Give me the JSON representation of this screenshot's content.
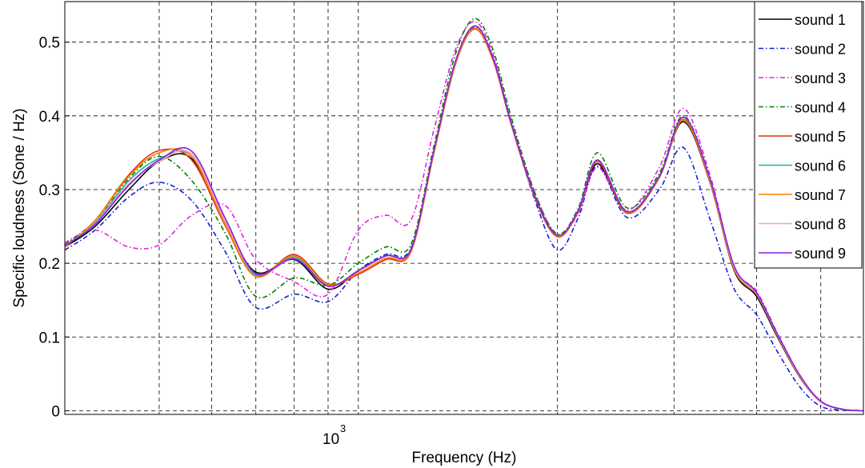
{
  "chart_data": {
    "type": "line",
    "xlabel": "Frequency (Hz)",
    "ylabel": "Specific loudness (Sone / Hz)",
    "x_scale": "log",
    "xlim": [
      360,
      5800
    ],
    "ylim": [
      -0.005,
      0.555
    ],
    "yticks": [
      0,
      0.1,
      0.2,
      0.3,
      0.4,
      0.5
    ],
    "ytick_labels": [
      "0",
      "0.1",
      "0.2",
      "0.3",
      "0.4",
      "0.5"
    ],
    "xtick_label": {
      "base": "10",
      "exponent": "3",
      "value": 1000
    },
    "x_gridlines": [
      500,
      600,
      700,
      800,
      900,
      1000,
      2000,
      3000,
      4000,
      5000
    ],
    "grid": true,
    "legend_position": "top-right",
    "series": [
      {
        "name": "sound 1",
        "color": "#000000",
        "dash": "solid",
        "x": [
          360,
          400,
          450,
          500,
          560,
          630,
          700,
          800,
          900,
          1000,
          1100,
          1200,
          1300,
          1400,
          1500,
          1600,
          1700,
          1850,
          2000,
          2150,
          2300,
          2550,
          2850,
          3100,
          3400,
          3700,
          4000,
          4300,
          4650,
          5000,
          5400,
          5800
        ],
        "y": [
          0.222,
          0.25,
          0.3,
          0.338,
          0.342,
          0.255,
          0.188,
          0.205,
          0.165,
          0.19,
          0.21,
          0.218,
          0.35,
          0.47,
          0.518,
          0.475,
          0.39,
          0.29,
          0.238,
          0.27,
          0.335,
          0.268,
          0.318,
          0.392,
          0.31,
          0.19,
          0.155,
          0.1,
          0.045,
          0.012,
          0.002,
          0.0
        ]
      },
      {
        "name": "sound 2",
        "color": "#1020d0",
        "dash": "dashdot",
        "x": [
          360,
          400,
          450,
          500,
          560,
          630,
          700,
          800,
          900,
          1000,
          1100,
          1200,
          1300,
          1400,
          1500,
          1600,
          1700,
          1850,
          2000,
          2150,
          2300,
          2550,
          2850,
          3100,
          3400,
          3700,
          4000,
          4300,
          4650,
          5000,
          5400,
          5800
        ],
        "y": [
          0.218,
          0.245,
          0.29,
          0.31,
          0.285,
          0.215,
          0.14,
          0.158,
          0.148,
          0.19,
          0.212,
          0.22,
          0.35,
          0.47,
          0.52,
          0.478,
          0.392,
          0.285,
          0.218,
          0.262,
          0.332,
          0.262,
          0.3,
          0.357,
          0.26,
          0.165,
          0.13,
          0.08,
          0.032,
          0.006,
          0.001,
          0.0
        ]
      },
      {
        "name": "sound 3",
        "color": "#e020e0",
        "dash": "dashdot",
        "x": [
          360,
          400,
          450,
          500,
          560,
          630,
          700,
          800,
          900,
          1000,
          1100,
          1200,
          1300,
          1400,
          1500,
          1600,
          1700,
          1850,
          2000,
          2150,
          2300,
          2550,
          2850,
          3100,
          3400,
          3700,
          4000,
          4300,
          4650,
          5000,
          5400,
          5800
        ],
        "y": [
          0.228,
          0.245,
          0.222,
          0.225,
          0.265,
          0.278,
          0.205,
          0.175,
          0.158,
          0.245,
          0.265,
          0.258,
          0.38,
          0.488,
          0.528,
          0.482,
          0.395,
          0.295,
          0.238,
          0.268,
          0.33,
          0.272,
          0.33,
          0.41,
          0.32,
          0.195,
          0.162,
          0.105,
          0.048,
          0.013,
          0.002,
          0.0
        ]
      },
      {
        "name": "sound 4",
        "color": "#008000",
        "dash": "dashdot",
        "x": [
          360,
          400,
          450,
          500,
          560,
          630,
          700,
          800,
          900,
          1000,
          1100,
          1200,
          1300,
          1400,
          1500,
          1600,
          1700,
          1850,
          2000,
          2150,
          2300,
          2550,
          2850,
          3100,
          3400,
          3700,
          4000,
          4300,
          4650,
          5000,
          5400,
          5800
        ],
        "y": [
          0.225,
          0.258,
          0.315,
          0.345,
          0.312,
          0.24,
          0.155,
          0.18,
          0.17,
          0.2,
          0.222,
          0.225,
          0.358,
          0.482,
          0.532,
          0.488,
          0.4,
          0.295,
          0.24,
          0.275,
          0.35,
          0.275,
          0.322,
          0.4,
          0.315,
          0.192,
          0.16,
          0.102,
          0.046,
          0.012,
          0.002,
          0.0
        ]
      },
      {
        "name": "sound 5",
        "color": "#e03010",
        "dash": "solid",
        "x": [
          360,
          400,
          450,
          500,
          560,
          630,
          700,
          800,
          900,
          1000,
          1100,
          1200,
          1300,
          1400,
          1500,
          1600,
          1700,
          1850,
          2000,
          2150,
          2300,
          2550,
          2850,
          3100,
          3400,
          3700,
          4000,
          4300,
          4650,
          5000,
          5400,
          5800
        ],
        "y": [
          0.222,
          0.258,
          0.32,
          0.353,
          0.34,
          0.25,
          0.182,
          0.212,
          0.172,
          0.185,
          0.205,
          0.215,
          0.348,
          0.468,
          0.518,
          0.474,
          0.39,
          0.288,
          0.236,
          0.27,
          0.338,
          0.268,
          0.316,
          0.395,
          0.312,
          0.192,
          0.158,
          0.102,
          0.046,
          0.012,
          0.002,
          0.0
        ]
      },
      {
        "name": "sound 6",
        "color": "#20b0b0",
        "dash": "solid",
        "x": [
          360,
          400,
          450,
          500,
          560,
          630,
          700,
          800,
          900,
          1000,
          1100,
          1200,
          1300,
          1400,
          1500,
          1600,
          1700,
          1850,
          2000,
          2150,
          2300,
          2550,
          2850,
          3100,
          3400,
          3700,
          4000,
          4300,
          4650,
          5000,
          5400,
          5800
        ],
        "y": [
          0.223,
          0.255,
          0.312,
          0.342,
          0.345,
          0.252,
          0.184,
          0.208,
          0.17,
          0.19,
          0.21,
          0.218,
          0.352,
          0.472,
          0.522,
          0.477,
          0.392,
          0.29,
          0.238,
          0.272,
          0.34,
          0.27,
          0.318,
          0.398,
          0.313,
          0.193,
          0.158,
          0.102,
          0.046,
          0.012,
          0.002,
          0.0
        ]
      },
      {
        "name": "sound 7",
        "color": "#ff8000",
        "dash": "solid",
        "x": [
          360,
          400,
          450,
          500,
          560,
          630,
          700,
          800,
          900,
          1000,
          1100,
          1200,
          1300,
          1400,
          1500,
          1600,
          1700,
          1850,
          2000,
          2150,
          2300,
          2550,
          2850,
          3100,
          3400,
          3700,
          4000,
          4300,
          4650,
          5000,
          5400,
          5800
        ],
        "y": [
          0.222,
          0.258,
          0.318,
          0.35,
          0.345,
          0.252,
          0.182,
          0.21,
          0.171,
          0.187,
          0.207,
          0.216,
          0.349,
          0.469,
          0.519,
          0.475,
          0.39,
          0.289,
          0.237,
          0.271,
          0.339,
          0.269,
          0.317,
          0.394,
          0.311,
          0.192,
          0.158,
          0.102,
          0.046,
          0.012,
          0.002,
          0.0
        ]
      },
      {
        "name": "sound 8",
        "color": "#ffa0b0",
        "dash": "solid",
        "x": [
          360,
          400,
          450,
          500,
          560,
          630,
          700,
          800,
          900,
          1000,
          1100,
          1200,
          1300,
          1400,
          1500,
          1600,
          1700,
          1850,
          2000,
          2150,
          2300,
          2550,
          2850,
          3100,
          3400,
          3700,
          4000,
          4300,
          4650,
          5000,
          5400,
          5800
        ],
        "y": [
          0.224,
          0.254,
          0.308,
          0.338,
          0.348,
          0.256,
          0.186,
          0.206,
          0.169,
          0.19,
          0.21,
          0.218,
          0.352,
          0.472,
          0.522,
          0.477,
          0.392,
          0.29,
          0.238,
          0.272,
          0.34,
          0.27,
          0.318,
          0.398,
          0.314,
          0.194,
          0.159,
          0.103,
          0.047,
          0.012,
          0.002,
          0.0
        ]
      },
      {
        "name": "sound 9",
        "color": "#8020e0",
        "dash": "solid",
        "x": [
          360,
          400,
          450,
          500,
          560,
          630,
          700,
          800,
          900,
          1000,
          1100,
          1200,
          1300,
          1400,
          1500,
          1600,
          1700,
          1850,
          2000,
          2150,
          2300,
          2550,
          2850,
          3100,
          3400,
          3700,
          4000,
          4300,
          4650,
          5000,
          5400,
          5800
        ],
        "y": [
          0.224,
          0.253,
          0.306,
          0.34,
          0.352,
          0.26,
          0.186,
          0.206,
          0.169,
          0.19,
          0.21,
          0.218,
          0.352,
          0.472,
          0.522,
          0.477,
          0.392,
          0.29,
          0.238,
          0.272,
          0.34,
          0.27,
          0.318,
          0.398,
          0.315,
          0.196,
          0.16,
          0.104,
          0.048,
          0.013,
          0.002,
          0.0
        ]
      }
    ]
  }
}
